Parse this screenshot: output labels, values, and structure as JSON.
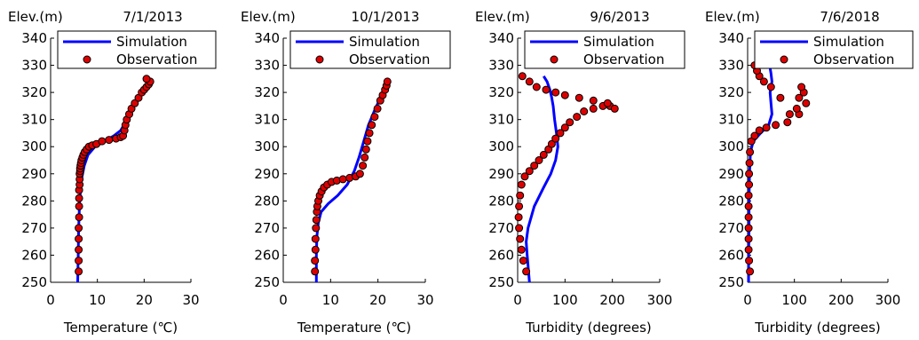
{
  "chart_data": [
    {
      "type": "line",
      "title": "7/1/2013",
      "ylabel": "Elev.(m)",
      "xlabel": "Temperature (℃)",
      "xlim": [
        0,
        30
      ],
      "ylim": [
        250,
        340
      ],
      "xticks": [
        0,
        10,
        20,
        30
      ],
      "yticks": [
        250,
        260,
        270,
        280,
        290,
        300,
        310,
        320,
        330,
        340
      ],
      "grid": false,
      "legend": {
        "position": "top",
        "box": true
      },
      "series": [
        {
          "name": "Simulation",
          "style": "line",
          "color": "#0000ff",
          "x": [
            5.8,
            5.9,
            6.0,
            6.2,
            6.6,
            7.2,
            8.0,
            9.5,
            11.5,
            13.5,
            15.0,
            16.0,
            17.2,
            18.5,
            19.5,
            20.5,
            21.0
          ],
          "y": [
            250,
            260,
            270,
            280,
            288,
            293,
            297,
            300,
            302,
            304,
            306,
            309,
            313,
            317,
            320,
            323,
            325
          ]
        },
        {
          "name": "Observation",
          "style": "marker",
          "color": "#dd0000",
          "x": [
            6.0,
            6.0,
            6.0,
            6.0,
            6.0,
            6.1,
            6.1,
            6.1,
            6.1,
            6.2,
            6.2,
            6.2,
            6.3,
            6.3,
            6.4,
            6.5,
            6.6,
            6.8,
            7.0,
            7.3,
            7.7,
            8.2,
            8.9,
            9.8,
            11.0,
            12.5,
            14.0,
            15.0,
            15.5,
            15.8,
            16.0,
            16.3,
            16.8,
            17.3,
            18.0,
            18.8,
            19.5,
            20.0,
            20.5,
            21.0,
            21.3,
            20.5
          ],
          "y": [
            254,
            258,
            262,
            266,
            270,
            274,
            278,
            281,
            284,
            286,
            288,
            290,
            291,
            292,
            293,
            294,
            295,
            296,
            297,
            298,
            299,
            300,
            300.5,
            301,
            302,
            302.5,
            303,
            303.5,
            304,
            306,
            308,
            310,
            312,
            314,
            316,
            318,
            320,
            321,
            322,
            323,
            324,
            325
          ]
        }
      ]
    },
    {
      "type": "line",
      "title": "10/1/2013",
      "ylabel": "Elev.(m)",
      "xlabel": "Temperature (℃)",
      "xlim": [
        0,
        30
      ],
      "ylim": [
        250,
        340
      ],
      "xticks": [
        0,
        10,
        20,
        30
      ],
      "yticks": [
        250,
        260,
        270,
        280,
        290,
        300,
        310,
        320,
        330,
        340
      ],
      "grid": false,
      "legend": {
        "position": "top",
        "box": true
      },
      "series": [
        {
          "name": "Simulation",
          "style": "line",
          "color": "#0000ff",
          "x": [
            7.0,
            7.0,
            7.1,
            7.4,
            8.0,
            9.5,
            11.5,
            13.5,
            15.0,
            16.0,
            17.0,
            18.0,
            19.2,
            20.5,
            21.5,
            22.0
          ],
          "y": [
            250,
            260,
            267,
            272,
            276,
            279,
            282,
            286,
            291,
            296,
            302,
            308,
            313,
            318,
            322,
            324
          ]
        },
        {
          "name": "Observation",
          "style": "marker",
          "color": "#dd0000",
          "x": [
            6.7,
            6.7,
            6.8,
            6.8,
            6.9,
            7.0,
            7.1,
            7.2,
            7.4,
            7.7,
            8.1,
            8.6,
            9.3,
            10.2,
            11.3,
            12.6,
            14.0,
            15.3,
            16.2,
            16.8,
            17.2,
            17.5,
            17.8,
            18.2,
            18.7,
            19.3,
            19.9,
            20.5,
            21.0,
            21.5,
            21.8,
            22.0
          ],
          "y": [
            254,
            258,
            262,
            266,
            270,
            273,
            276,
            278,
            280,
            282,
            283.5,
            285,
            286,
            287,
            287.5,
            288,
            288.5,
            289,
            290,
            293,
            296,
            299,
            302,
            305,
            308,
            311,
            314,
            317,
            319,
            321,
            322.5,
            324
          ]
        }
      ]
    },
    {
      "type": "line",
      "title": "9/6/2013",
      "ylabel": "Elev.(m)",
      "xlabel": "Turbidity (degrees)",
      "xlim": [
        0,
        300
      ],
      "ylim": [
        250,
        340
      ],
      "xticks": [
        0,
        100,
        200,
        300
      ],
      "yticks": [
        250,
        260,
        270,
        280,
        290,
        300,
        310,
        320,
        330,
        340
      ],
      "grid": false,
      "legend": {
        "position": "top",
        "box": true
      },
      "series": [
        {
          "name": "Simulation",
          "style": "line",
          "color": "#0000ff",
          "x": [
            25,
            20,
            18,
            22,
            35,
            55,
            70,
            80,
            85,
            82,
            78,
            75,
            72,
            68,
            62,
            55
          ],
          "y": [
            250,
            260,
            265,
            270,
            278,
            285,
            290,
            295,
            300,
            305,
            310,
            315,
            318,
            321,
            324,
            326
          ]
        },
        {
          "name": "Observation",
          "style": "marker",
          "color": "#dd0000",
          "x": [
            18,
            12,
            8,
            5,
            3,
            2,
            3,
            5,
            8,
            15,
            25,
            35,
            45,
            55,
            65,
            72,
            80,
            90,
            100,
            110,
            125,
            140,
            160,
            180,
            195,
            205,
            190,
            160,
            130,
            100,
            80,
            60,
            40,
            25,
            10
          ],
          "y": [
            254,
            258,
            262,
            266,
            270,
            274,
            278,
            282,
            286,
            289,
            291,
            293,
            295,
            297,
            299,
            301,
            303,
            305,
            307,
            309,
            311,
            313,
            314,
            315,
            315,
            314,
            316,
            317,
            318,
            319,
            320,
            321,
            322,
            324,
            326
          ]
        }
      ]
    },
    {
      "type": "line",
      "title": "7/6/2018",
      "ylabel": "Elev.(m)",
      "xlabel": "Turbidity (degrees)",
      "xlim": [
        0,
        300
      ],
      "ylim": [
        250,
        340
      ],
      "xticks": [
        0,
        100,
        200,
        300
      ],
      "yticks": [
        250,
        260,
        270,
        280,
        290,
        300,
        310,
        320,
        330,
        340
      ],
      "grid": false,
      "legend": {
        "position": "top",
        "box": true
      },
      "series": [
        {
          "name": "Simulation",
          "style": "line",
          "color": "#0000ff",
          "x": [
            2,
            2,
            3,
            3,
            4,
            6,
            12,
            28,
            45,
            52,
            50,
            48,
            52,
            50,
            48
          ],
          "y": [
            250,
            260,
            270,
            280,
            290,
            298,
            302,
            305,
            308,
            312,
            316,
            320,
            324,
            327,
            329
          ]
        },
        {
          "name": "Observation",
          "style": "marker",
          "color": "#dd0000",
          "x": [
            5,
            3,
            2,
            2,
            2,
            2,
            2,
            2,
            3,
            3,
            4,
            5,
            8,
            15,
            25,
            40,
            60,
            85,
            110,
            125,
            120,
            115,
            110,
            105,
            90,
            70,
            50,
            35,
            25,
            20,
            15
          ],
          "y": [
            254,
            258,
            262,
            266,
            270,
            274,
            278,
            282,
            286,
            290,
            294,
            298,
            302,
            304,
            306,
            307,
            308,
            309,
            312,
            316,
            320,
            322,
            318,
            314,
            312,
            318,
            322,
            324,
            326,
            328,
            330
          ]
        }
      ]
    }
  ]
}
